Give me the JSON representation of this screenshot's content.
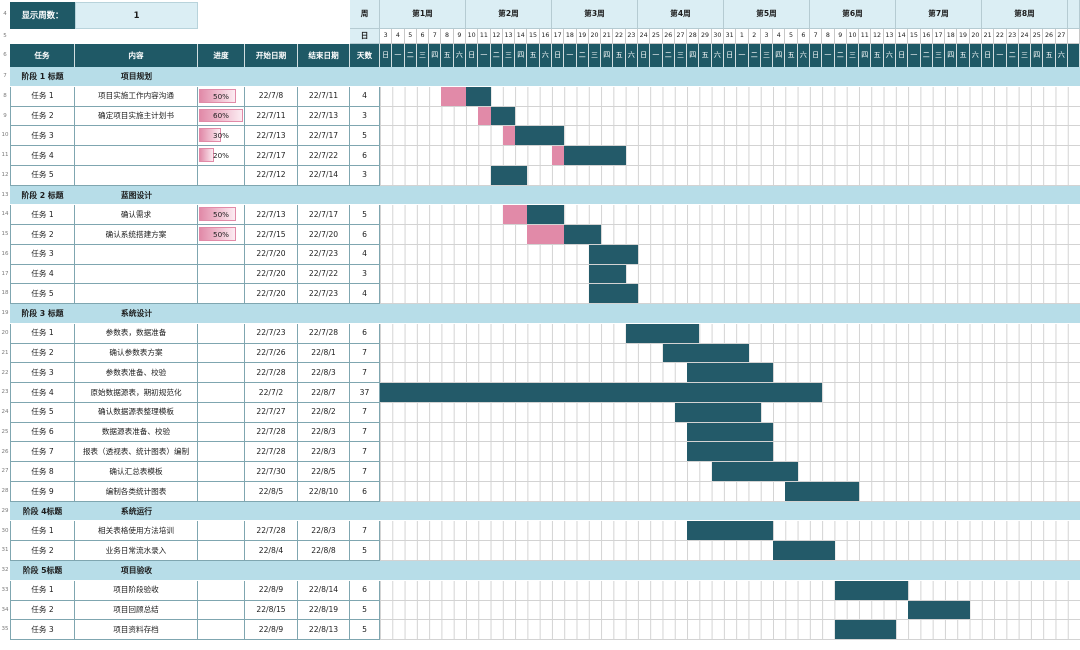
{
  "sheet": {
    "display_weeks_label": "显示周数：",
    "display_weeks_value": "1"
  },
  "header": {
    "week_label": "周",
    "day_label": "日",
    "columns": {
      "task": "任务",
      "content": "内容",
      "progress": "进度",
      "start": "开始日期",
      "end": "结束日期",
      "days": "天数"
    },
    "weeks": [
      "第1周",
      "第2周",
      "第3周",
      "第4周",
      "第5周",
      "第6周",
      "第7周",
      "第8周"
    ],
    "day_numbers": [
      "3",
      "4",
      "5",
      "6",
      "7",
      "8",
      "9",
      "10",
      "11",
      "12",
      "13",
      "14",
      "15",
      "16",
      "17",
      "18",
      "19",
      "20",
      "21",
      "22",
      "23",
      "24",
      "25",
      "26",
      "27",
      "28",
      "29",
      "30",
      "31",
      "1",
      "2",
      "3",
      "4",
      "5",
      "6",
      "7",
      "8",
      "9",
      "10",
      "11",
      "12",
      "13",
      "14",
      "15",
      "16",
      "17",
      "18",
      "19",
      "20",
      "21",
      "22",
      "23",
      "24",
      "25",
      "26",
      "27"
    ],
    "weekdays": [
      "日",
      "一",
      "二",
      "三",
      "四",
      "五",
      "六"
    ]
  },
  "row_numbers": [
    "4",
    "5",
    "6",
    "7",
    "8",
    "9",
    "10",
    "11",
    "12",
    "13",
    "14",
    "15",
    "16",
    "17",
    "18",
    "19",
    "20",
    "21",
    "22",
    "23",
    "24",
    "25",
    "26",
    "27",
    "28",
    "29",
    "30",
    "31",
    "32",
    "33",
    "34",
    "35"
  ],
  "stages": [
    {
      "title": "阶段 1 标题",
      "name": "项目规划",
      "tasks": [
        {
          "task": "任务 1",
          "content": "项目实施工作内容沟通",
          "progress": "50%",
          "start": "22/7/8",
          "end": "22/7/11",
          "days": 4
        },
        {
          "task": "任务 2",
          "content": "确定项目实施主计划书",
          "progress": "60%",
          "start": "22/7/11",
          "end": "22/7/13",
          "days": 3
        },
        {
          "task": "任务 3",
          "content": "",
          "progress": "30%",
          "start": "22/7/13",
          "end": "22/7/17",
          "days": 5
        },
        {
          "task": "任务 4",
          "content": "",
          "progress": "20%",
          "start": "22/7/17",
          "end": "22/7/22",
          "days": 6
        },
        {
          "task": "任务 5",
          "content": "",
          "progress": "",
          "start": "22/7/12",
          "end": "22/7/14",
          "days": 3
        }
      ]
    },
    {
      "title": "阶段 2 标题",
      "name": "蓝图设计",
      "tasks": [
        {
          "task": "任务 1",
          "content": "确认需求",
          "progress": "50%",
          "start": "22/7/13",
          "end": "22/7/17",
          "days": 5
        },
        {
          "task": "任务 2",
          "content": "确认系统搭建方案",
          "progress": "50%",
          "start": "22/7/15",
          "end": "22/7/20",
          "days": 6
        },
        {
          "task": "任务 3",
          "content": "",
          "progress": "",
          "start": "22/7/20",
          "end": "22/7/23",
          "days": 4
        },
        {
          "task": "任务 4",
          "content": "",
          "progress": "",
          "start": "22/7/20",
          "end": "22/7/22",
          "days": 3
        },
        {
          "task": "任务 5",
          "content": "",
          "progress": "",
          "start": "22/7/20",
          "end": "22/7/23",
          "days": 4
        }
      ]
    },
    {
      "title": "阶段 3 标题",
      "name": "系统设计",
      "tasks": [
        {
          "task": "任务 1",
          "content": "参数表，数据准备",
          "progress": "",
          "start": "22/7/23",
          "end": "22/7/28",
          "days": 6
        },
        {
          "task": "任务 2",
          "content": "确认参数表方案",
          "progress": "",
          "start": "22/7/26",
          "end": "22/8/1",
          "days": 7
        },
        {
          "task": "任务 3",
          "content": "参数表准备、校验",
          "progress": "",
          "start": "22/7/28",
          "end": "22/8/3",
          "days": 7
        },
        {
          "task": "任务 4",
          "content": "原始数据源表，期初规范化",
          "progress": "",
          "start": "22/7/2",
          "end": "22/8/7",
          "days": 37
        },
        {
          "task": "任务 5",
          "content": "确认数据源表整理模板",
          "progress": "",
          "start": "22/7/27",
          "end": "22/8/2",
          "days": 7
        },
        {
          "task": "任务 6",
          "content": "数据源表准备、校验",
          "progress": "",
          "start": "22/7/28",
          "end": "22/8/3",
          "days": 7
        },
        {
          "task": "任务 7",
          "content": "报表（透视表、统计图表）编制",
          "progress": "",
          "start": "22/7/28",
          "end": "22/8/3",
          "days": 7
        },
        {
          "task": "任务 8",
          "content": "确认汇总表模板",
          "progress": "",
          "start": "22/7/30",
          "end": "22/8/5",
          "days": 7
        },
        {
          "task": "任务 9",
          "content": "编制各类统计图表",
          "progress": "",
          "start": "22/8/5",
          "end": "22/8/10",
          "days": 6
        }
      ]
    },
    {
      "title": "阶段 4标题",
      "name": "系统运行",
      "tasks": [
        {
          "task": "任务 1",
          "content": "相关表格使用方法培训",
          "progress": "",
          "start": "22/7/28",
          "end": "22/8/3",
          "days": 7
        },
        {
          "task": "任务 2",
          "content": "业务日常流水录入",
          "progress": "",
          "start": "22/8/4",
          "end": "22/8/8",
          "days": 5
        }
      ]
    },
    {
      "title": "阶段 5标题",
      "name": "项目验收",
      "tasks": [
        {
          "task": "任务 1",
          "content": "项目阶段验收",
          "progress": "",
          "start": "22/8/9",
          "end": "22/8/14",
          "days": 6
        },
        {
          "task": "任务 2",
          "content": "项目回顾总结",
          "progress": "",
          "start": "22/8/15",
          "end": "22/8/19",
          "days": 5
        },
        {
          "task": "任务 3",
          "content": "项目资料存档",
          "progress": "",
          "start": "22/8/9",
          "end": "22/8/13",
          "days": 5
        }
      ]
    }
  ],
  "colors": {
    "header_fill": "#1f5966",
    "stage_fill": "#b7dde8",
    "week_header_fill": "#dbeef4",
    "gantt_bar": "#235a69",
    "progress_fill": "#e18aa8",
    "gridline": "#d3d3d3",
    "table_border": "#7fa6b0"
  }
}
